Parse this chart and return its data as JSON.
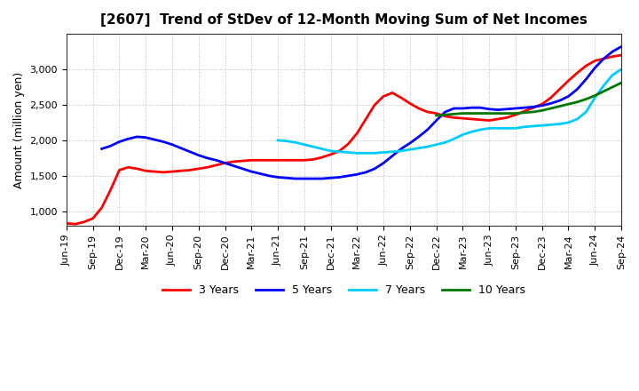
{
  "title": "[2607]  Trend of StDev of 12-Month Moving Sum of Net Incomes",
  "ylabel": "Amount (million yen)",
  "background_color": "#ffffff",
  "grid_color": "#aaaaaa",
  "ylim": [
    800,
    3500
  ],
  "yticks": [
    1000,
    1500,
    2000,
    2500,
    3000
  ],
  "series": {
    "3 Years": {
      "color": "#ff0000",
      "x": [
        0,
        1,
        2,
        3,
        4,
        5,
        6,
        7,
        8,
        9,
        10,
        11,
        12,
        13,
        14,
        15,
        16,
        17,
        18,
        19,
        20,
        21,
        22,
        23,
        24,
        25,
        26,
        27,
        28,
        29,
        30,
        31,
        32,
        33,
        34,
        35,
        36,
        37,
        38,
        39,
        40,
        41,
        42,
        43,
        44,
        45,
        46,
        47,
        48,
        49,
        50,
        51,
        52,
        53,
        54,
        55,
        56,
        57,
        58,
        59,
        60,
        61,
        62,
        63
      ],
      "y": [
        830,
        820,
        850,
        900,
        1050,
        1300,
        1580,
        1620,
        1600,
        1570,
        1560,
        1550,
        1560,
        1570,
        1580,
        1600,
        1620,
        1650,
        1680,
        1700,
        1710,
        1720,
        1720,
        1720,
        1720,
        1720,
        1720,
        1720,
        1730,
        1760,
        1800,
        1850,
        1950,
        2100,
        2300,
        2500,
        2620,
        2670,
        2600,
        2520,
        2450,
        2400,
        2380,
        2340,
        2320,
        2310,
        2300,
        2290,
        2280,
        2300,
        2320,
        2360,
        2410,
        2460,
        2510,
        2600,
        2720,
        2840,
        2950,
        3050,
        3120,
        3150,
        3180,
        3200
      ]
    },
    "5 Years": {
      "color": "#0000ff",
      "x": [
        4,
        5,
        6,
        7,
        8,
        9,
        10,
        11,
        12,
        13,
        14,
        15,
        16,
        17,
        18,
        19,
        20,
        21,
        22,
        23,
        24,
        25,
        26,
        27,
        28,
        29,
        30,
        31,
        32,
        33,
        34,
        35,
        36,
        37,
        38,
        39,
        40,
        41,
        42,
        43,
        44,
        45,
        46,
        47,
        48,
        49,
        50,
        51,
        52,
        53,
        54,
        55,
        56,
        57,
        58,
        59,
        60,
        61,
        62,
        63
      ],
      "y": [
        1880,
        1920,
        1980,
        2020,
        2050,
        2040,
        2010,
        1980,
        1940,
        1890,
        1840,
        1790,
        1750,
        1720,
        1680,
        1640,
        1600,
        1560,
        1530,
        1500,
        1480,
        1470,
        1460,
        1460,
        1460,
        1460,
        1470,
        1480,
        1500,
        1520,
        1550,
        1600,
        1680,
        1780,
        1880,
        1960,
        2050,
        2150,
        2280,
        2400,
        2450,
        2450,
        2460,
        2460,
        2440,
        2430,
        2440,
        2450,
        2460,
        2470,
        2490,
        2520,
        2560,
        2620,
        2720,
        2860,
        3020,
        3150,
        3250,
        3320
      ]
    },
    "7 Years": {
      "color": "#00ccff",
      "x": [
        24,
        25,
        26,
        27,
        28,
        29,
        30,
        31,
        32,
        33,
        34,
        35,
        36,
        37,
        38,
        39,
        40,
        41,
        42,
        43,
        44,
        45,
        46,
        47,
        48,
        49,
        50,
        51,
        52,
        53,
        54,
        55,
        56,
        57,
        58,
        59,
        60,
        61,
        62,
        63
      ],
      "y": [
        2000,
        1990,
        1970,
        1940,
        1910,
        1880,
        1850,
        1840,
        1830,
        1820,
        1820,
        1820,
        1830,
        1840,
        1850,
        1870,
        1890,
        1910,
        1940,
        1970,
        2020,
        2080,
        2120,
        2150,
        2170,
        2170,
        2170,
        2170,
        2190,
        2200,
        2210,
        2220,
        2230,
        2250,
        2300,
        2400,
        2600,
        2770,
        2920,
        3000
      ]
    },
    "10 Years": {
      "color": "#007700",
      "x": [
        42,
        43,
        44,
        45,
        46,
        47,
        48,
        49,
        50,
        51,
        52,
        53,
        54,
        55,
        56,
        57,
        58,
        59,
        60,
        61,
        62,
        63
      ],
      "y": [
        2350,
        2360,
        2370,
        2380,
        2380,
        2380,
        2380,
        2380,
        2380,
        2380,
        2390,
        2400,
        2420,
        2450,
        2480,
        2510,
        2540,
        2580,
        2630,
        2690,
        2750,
        2810
      ]
    }
  },
  "xtick_labels": [
    "Jun-19",
    "Sep-19",
    "Dec-19",
    "Mar-20",
    "Jun-20",
    "Sep-20",
    "Dec-20",
    "Mar-21",
    "Jun-21",
    "Sep-21",
    "Dec-21",
    "Mar-22",
    "Jun-22",
    "Sep-22",
    "Dec-22",
    "Mar-23",
    "Jun-23",
    "Sep-23",
    "Dec-23",
    "Mar-24",
    "Jun-24",
    "Sep-24"
  ],
  "xtick_positions": [
    0,
    3,
    6,
    9,
    12,
    15,
    18,
    21,
    24,
    27,
    30,
    33,
    36,
    39,
    42,
    45,
    48,
    51,
    54,
    57,
    60,
    63
  ]
}
